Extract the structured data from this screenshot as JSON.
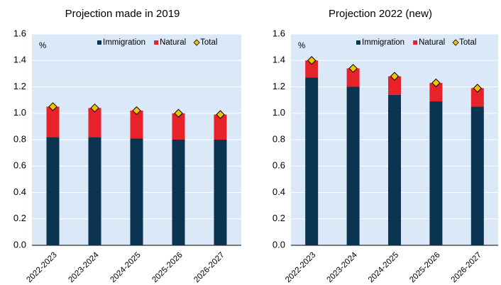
{
  "chart_data": [
    {
      "type": "bar",
      "stacked": true,
      "title": "Projection made in 2019",
      "ylabel": "%",
      "categories": [
        "2022-2023",
        "2023-2024",
        "2024-2025",
        "2025-2026",
        "2026-2027"
      ],
      "series": [
        {
          "name": "Immigration",
          "color": "#0b3450",
          "values": [
            0.82,
            0.82,
            0.81,
            0.8,
            0.8
          ]
        },
        {
          "name": "Natural",
          "color": "#e8222a",
          "values": [
            0.23,
            0.22,
            0.21,
            0.2,
            0.19
          ]
        },
        {
          "name": "Total",
          "color": "#f2c200",
          "marker": "diamond",
          "values": [
            1.05,
            1.04,
            1.02,
            1.0,
            0.99
          ]
        }
      ],
      "ylim": [
        0,
        1.6
      ],
      "yticks": [
        {
          "value": 0,
          "label": "0.0"
        },
        0.2,
        0.4,
        0.6,
        0.8,
        {
          "value": 1,
          "label": "1.0"
        },
        1.2,
        1.4,
        1.6
      ],
      "grid": true,
      "legend": "top"
    },
    {
      "type": "bar",
      "stacked": true,
      "title": "Projection 2022 (new)",
      "ylabel": "%",
      "categories": [
        "2022-2023",
        "2023-2024",
        "2024-2025",
        "2025-2026",
        "2026-2027"
      ],
      "series": [
        {
          "name": "Immigration",
          "color": "#0b3450",
          "values": [
            1.27,
            1.2,
            1.14,
            1.09,
            1.05
          ]
        },
        {
          "name": "Natural",
          "color": "#e8222a",
          "values": [
            0.13,
            0.14,
            0.14,
            0.14,
            0.14
          ]
        },
        {
          "name": "Total",
          "color": "#f2c200",
          "marker": "diamond",
          "values": [
            1.4,
            1.34,
            1.28,
            1.23,
            1.19
          ]
        }
      ],
      "ylim": [
        0,
        1.6
      ],
      "yticks": [
        {
          "value": 0,
          "label": "0.0"
        },
        0.2,
        0.4,
        0.6,
        0.8,
        {
          "value": 1,
          "label": "1.0"
        },
        1.2,
        1.4,
        1.6
      ],
      "grid": true,
      "legend": "top"
    }
  ]
}
